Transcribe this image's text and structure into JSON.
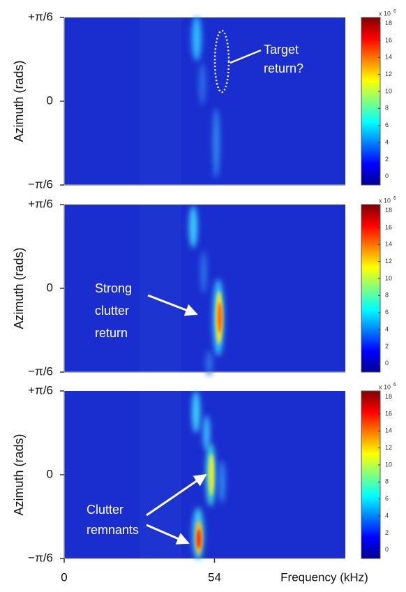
{
  "chart_data": [
    {
      "type": "heatmap",
      "ylabel": "Azimuth (rads)",
      "colormap": "jet",
      "ylim": [
        -0.5236,
        0.5236
      ],
      "yticks": [
        {
          "value": 0.5236,
          "label": "+π/6"
        },
        0,
        {
          "value": -0.5236,
          "label": "−π/6"
        }
      ],
      "xlim": [
        0,
        101
      ],
      "colorbar": {
        "lim": [
          -1,
          18.7
        ],
        "ticks": [
          0,
          2,
          4,
          6,
          8,
          10,
          12,
          14,
          16,
          18
        ],
        "label": "x 10",
        "exponent": "6"
      },
      "annotations": [
        [
          "Target",
          "return?"
        ]
      ]
    },
    {
      "type": "heatmap",
      "ylabel": "Azimuth (rads)",
      "colormap": "jet",
      "ylim": [
        -0.5236,
        0.5236
      ],
      "yticks": [
        {
          "value": 0.5236,
          "label": "+π/6"
        },
        0,
        {
          "value": -0.5236,
          "label": "−π/6"
        }
      ],
      "xlim": [
        0,
        101
      ],
      "colorbar": {
        "lim": [
          -1,
          18.7
        ],
        "ticks": [
          0,
          2,
          4,
          6,
          8,
          10,
          12,
          14,
          16,
          18
        ],
        "label": "x 10",
        "exponent": "6"
      },
      "annotations": [
        [
          "Strong",
          "clutter",
          "return"
        ]
      ]
    },
    {
      "type": "heatmap",
      "ylabel": "Azimuth (rads)",
      "xlabel": "Frequency (kHz)",
      "colormap": "jet",
      "ylim": [
        -0.5236,
        0.5236
      ],
      "yticks": [
        {
          "value": 0.5236,
          "label": "+π/6"
        },
        0,
        {
          "value": -0.5236,
          "label": "−π/6"
        }
      ],
      "xlim": [
        0,
        101
      ],
      "xticks": [
        0,
        54
      ],
      "colorbar": {
        "lim": [
          -1,
          18.7
        ],
        "ticks": [
          0,
          2,
          4,
          6,
          8,
          10,
          12,
          14,
          16,
          18
        ],
        "label": "x 10",
        "exponent": "6"
      },
      "annotations": [
        [
          "Clutter",
          "remnants"
        ]
      ]
    }
  ]
}
